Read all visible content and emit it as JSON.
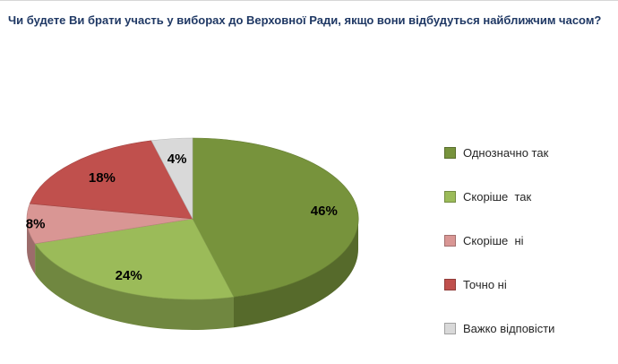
{
  "title": "Чи будете Ви брати участь у виборах до Верховної Ради, якщо вони відбудуться найближчим часом?",
  "chart_data": {
    "type": "pie",
    "style": "3d-pie",
    "title": "Чи будете Ви брати участь у виборах до Верховної Ради, якщо вони відбудуться найближчим часом?",
    "labels": [
      "Однозначно так",
      "Скоріше  так",
      "Скоріше  ні",
      "Точно ні",
      "Важко відповісти"
    ],
    "values": [
      46,
      24,
      8,
      18,
      4
    ],
    "data_labels": [
      "46%",
      "24%",
      "8%",
      "18%",
      "4%"
    ],
    "unit": "%",
    "colors": [
      "#77933C",
      "#9BBB59",
      "#D99694",
      "#C0504D",
      "#D9D9D9"
    ],
    "legend_position": "right",
    "start_angle_deg": 0,
    "direction": "clockwise",
    "background": "#FFFFFF"
  }
}
